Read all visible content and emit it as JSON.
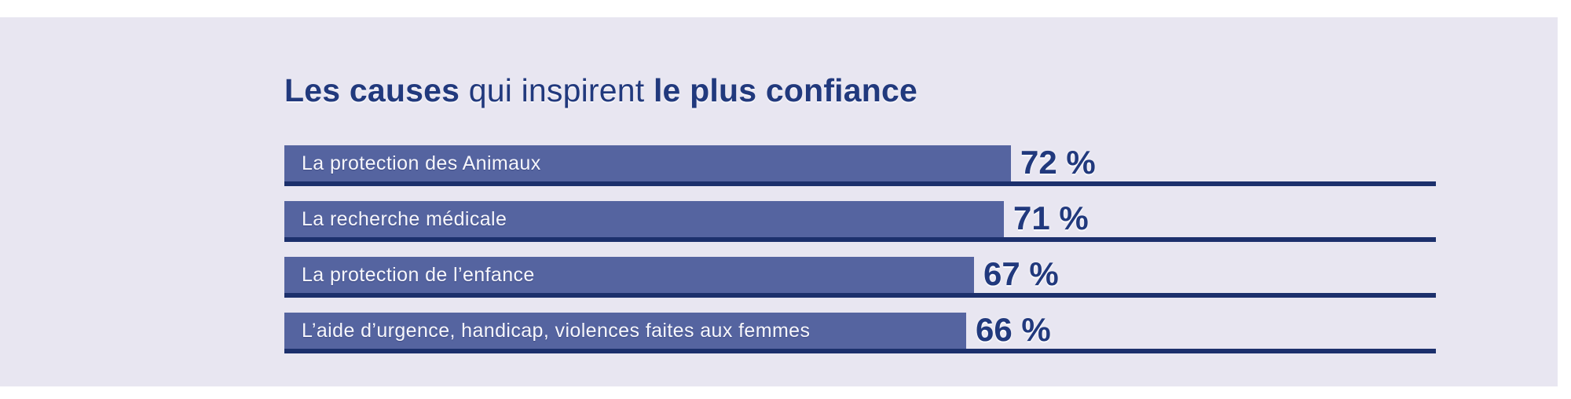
{
  "chart_data": {
    "type": "bar",
    "orientation": "horizontal",
    "title": "Les causes qui inspirent le plus confiance",
    "title_parts": {
      "bold_lead": "Les causes",
      "regular_mid": " qui inspirent ",
      "bold_tail": "le plus confiance"
    },
    "categories": [
      "La protection des Animaux",
      "La recherche médicale",
      "La protection de l’enfance",
      "L’aide d’urgence, handicap, violences faites aux femmes"
    ],
    "values": [
      72,
      71,
      67,
      66
    ],
    "value_labels": [
      "72 %",
      "71 %",
      "67 %",
      "66 %"
    ],
    "unit": "%",
    "xlim": [
      0,
      100
    ],
    "grid": false,
    "legend": false,
    "layout_hint": "category label printed inside bar, value label right of bar end, navy baseline under each bar"
  },
  "colors": {
    "page_background": "#ffffff",
    "panel_background": "#e8e6f1",
    "bar_fill": "#5564a0",
    "axis_line": "#1c306c",
    "heading_text": "#21397d",
    "value_text": "#21397d",
    "bar_label_text": "#f7f7fc"
  }
}
